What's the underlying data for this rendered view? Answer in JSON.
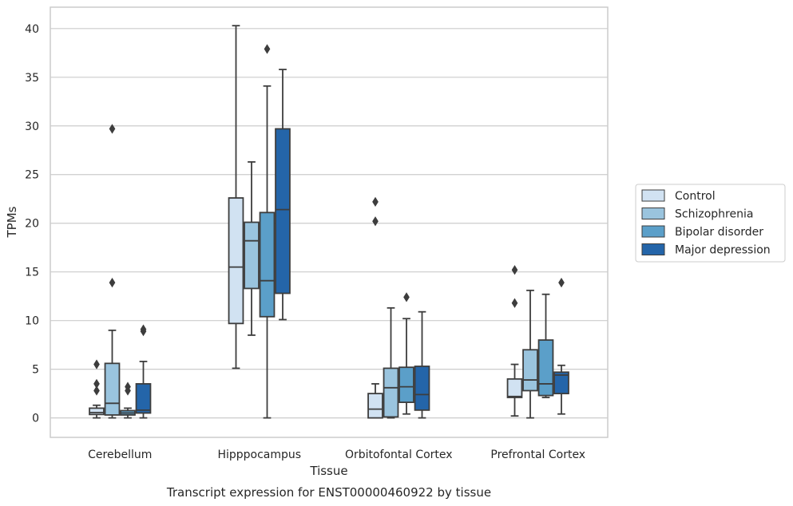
{
  "chart_data": {
    "type": "box",
    "title": "",
    "caption": "Transcript expression for ENST00000460922 by tissue",
    "xlabel": "Tissue",
    "ylabel": "TPMs",
    "ylim": [
      -2,
      42.2
    ],
    "yticks": [
      0,
      5,
      10,
      15,
      20,
      25,
      30,
      35,
      40
    ],
    "grid": "horizontal",
    "legend_position": "right",
    "categories": [
      "Cerebellum",
      "Hipppocampus",
      "Orbitofontal Cortex",
      "Prefrontal Cortex"
    ],
    "series": [
      {
        "name": "Control",
        "color": "#d1e2f2",
        "boxes": [
          {
            "whisker_low": 0.0,
            "q1": 0.35,
            "median": 0.55,
            "q3": 1.0,
            "whisker_high": 1.3,
            "outliers": [
              2.8,
              3.5,
              5.5
            ]
          },
          {
            "whisker_low": 5.1,
            "q1": 9.7,
            "median": 15.5,
            "q3": 22.6,
            "whisker_high": 40.3,
            "outliers": []
          },
          {
            "whisker_low": 0.0,
            "q1": 0.0,
            "median": 0.9,
            "q3": 2.5,
            "whisker_high": 3.5,
            "outliers": [
              20.2,
              22.2
            ]
          },
          {
            "whisker_low": 0.2,
            "q1": 2.1,
            "median": 2.2,
            "q3": 4.0,
            "whisker_high": 5.5,
            "outliers": [
              11.8,
              15.2
            ]
          }
        ]
      },
      {
        "name": "Schizophrenia",
        "color": "#9ac4de",
        "boxes": [
          {
            "whisker_low": 0.0,
            "q1": 0.3,
            "median": 1.5,
            "q3": 5.6,
            "whisker_high": 9.0,
            "outliers": [
              13.9,
              29.7
            ]
          },
          {
            "whisker_low": 8.5,
            "q1": 13.3,
            "median": 18.2,
            "q3": 20.1,
            "whisker_high": 26.3,
            "outliers": []
          },
          {
            "whisker_low": 0.0,
            "q1": 0.1,
            "median": 3.1,
            "q3": 5.1,
            "whisker_high": 11.3,
            "outliers": []
          },
          {
            "whisker_low": 0.0,
            "q1": 2.8,
            "median": 3.9,
            "q3": 7.0,
            "whisker_high": 13.1,
            "outliers": []
          }
        ]
      },
      {
        "name": "Bipolar disorder",
        "color": "#5b9fc9",
        "boxes": [
          {
            "whisker_low": 0.0,
            "q1": 0.3,
            "median": 0.5,
            "q3": 0.75,
            "whisker_high": 1.0,
            "outliers": [
              2.8,
              3.2
            ]
          },
          {
            "whisker_low": 0.0,
            "q1": 10.4,
            "median": 14.1,
            "q3": 21.1,
            "whisker_high": 34.1,
            "outliers": [
              37.9
            ]
          },
          {
            "whisker_low": 0.4,
            "q1": 1.6,
            "median": 3.2,
            "q3": 5.2,
            "whisker_high": 10.2,
            "outliers": [
              12.4
            ]
          },
          {
            "whisker_low": 2.1,
            "q1": 2.3,
            "median": 3.5,
            "q3": 8.0,
            "whisker_high": 12.7,
            "outliers": []
          }
        ]
      },
      {
        "name": "Major depression",
        "color": "#2465a9",
        "boxes": [
          {
            "whisker_low": 0.0,
            "q1": 0.5,
            "median": 0.8,
            "q3": 3.5,
            "whisker_high": 5.8,
            "outliers": [
              8.9,
              9.1
            ]
          },
          {
            "whisker_low": 10.1,
            "q1": 12.8,
            "median": 21.4,
            "q3": 29.7,
            "whisker_high": 35.8,
            "outliers": []
          },
          {
            "whisker_low": 0.0,
            "q1": 0.8,
            "median": 2.4,
            "q3": 5.3,
            "whisker_high": 10.9,
            "outliers": []
          },
          {
            "whisker_low": 0.4,
            "q1": 2.5,
            "median": 4.4,
            "q3": 4.7,
            "whisker_high": 5.4,
            "outliers": [
              13.9
            ]
          }
        ]
      }
    ]
  }
}
